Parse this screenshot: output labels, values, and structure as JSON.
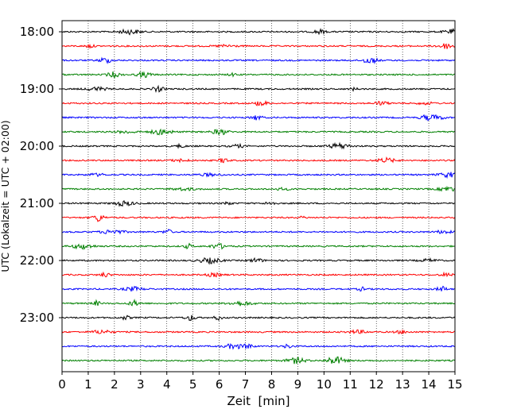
{
  "chart_data": {
    "type": "line",
    "kind": "helicorder",
    "xlabel": "Zeit  [min]",
    "ylabel": "UTC (Lokalzeit = UTC + 02:00)",
    "x_ticks": [
      "0",
      "1",
      "2",
      "3",
      "4",
      "5",
      "6",
      "7",
      "8",
      "9",
      "10",
      "11",
      "12",
      "13",
      "14",
      "15"
    ],
    "xlim": [
      0,
      15
    ],
    "y_tick_labels": [
      "18:00",
      "19:00",
      "20:00",
      "21:00",
      "22:00",
      "23:00"
    ],
    "trace_interval_min": 15,
    "first_trace": "18:00",
    "trace_count": 24,
    "trace_colors": [
      "#000000",
      "#ff0000",
      "#0000ff",
      "#008000"
    ],
    "vertical_grid": "dotted",
    "legend": "none"
  }
}
